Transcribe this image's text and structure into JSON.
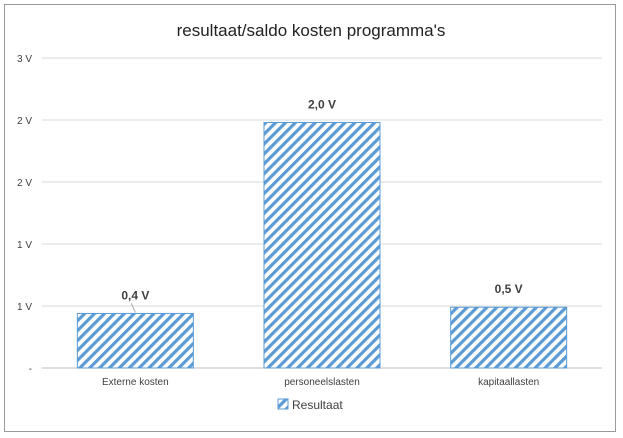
{
  "chart_data": {
    "type": "bar",
    "title": "resultaat/saldo kosten programma's",
    "categories": [
      "Externe kosten",
      "personeelslasten",
      "kapitaallasten"
    ],
    "series": [
      {
        "name": "Resultaat",
        "values": [
          0.44,
          1.98,
          0.49
        ],
        "color": "#5b9bd5",
        "pattern": "diagonal-stripes"
      }
    ],
    "data_labels": [
      "0,4 V",
      "2,0 V",
      "0,5 V"
    ],
    "y_ticks": [
      {
        "value": 0,
        "label": "-"
      },
      {
        "value": 0.5,
        "label": "1 V"
      },
      {
        "value": 1.0,
        "label": "1 V"
      },
      {
        "value": 1.5,
        "label": "2 V"
      },
      {
        "value": 2.0,
        "label": "2 V"
      },
      {
        "value": 2.5,
        "label": "3 V"
      }
    ],
    "ylim": [
      0,
      2.5
    ],
    "grid": true,
    "legend_position": "bottom"
  }
}
